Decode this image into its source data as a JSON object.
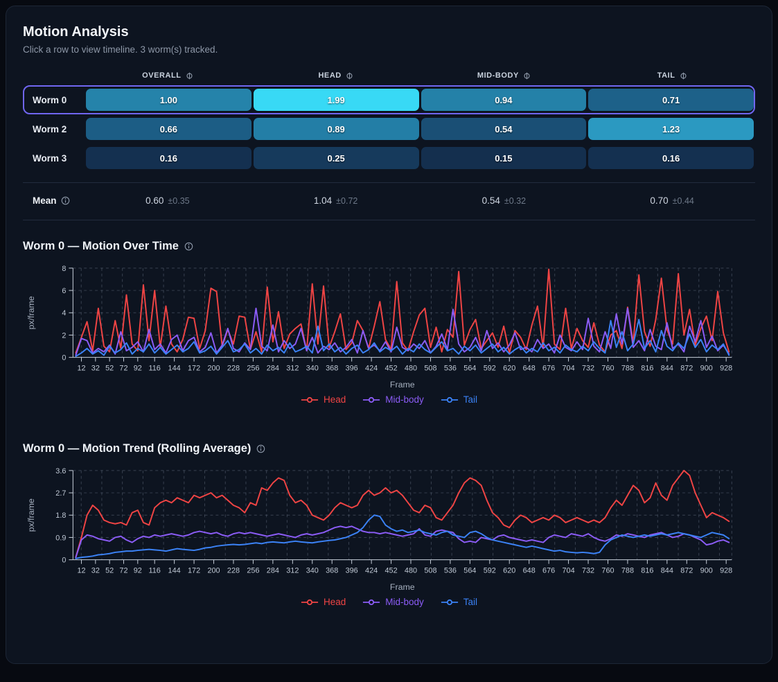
{
  "colors": {
    "page_bg": "#070a11",
    "card_bg": "#0d1420",
    "selected_row_border": "#7066f0",
    "head_series": "#ef4444",
    "midbody_series": "#8b5cf6",
    "tail_series": "#3b82f6"
  },
  "icons": {
    "column_info": "info-icon",
    "mean_info": "info-icon",
    "title_info": "info-icon"
  },
  "header": {
    "title": "Motion Analysis",
    "subtitle": "Click a row to view timeline. 3 worm(s) tracked."
  },
  "table": {
    "columns": [
      "OVERALL",
      "HEAD",
      "MID-BODY",
      "TAIL"
    ],
    "rows": [
      {
        "label": "Worm 0",
        "selected": true,
        "cells": [
          {
            "value": "1.00",
            "color": "#2583aa"
          },
          {
            "value": "1.99",
            "color": "#38d9f5"
          },
          {
            "value": "0.94",
            "color": "#2481a8"
          },
          {
            "value": "0.71",
            "color": "#1d6189"
          }
        ]
      },
      {
        "label": "Worm 2",
        "selected": false,
        "cells": [
          {
            "value": "0.66",
            "color": "#1c5d85"
          },
          {
            "value": "0.89",
            "color": "#237ea6"
          },
          {
            "value": "0.54",
            "color": "#1a4f75"
          },
          {
            "value": "1.23",
            "color": "#2b99c1"
          }
        ]
      },
      {
        "label": "Worm 3",
        "selected": false,
        "cells": [
          {
            "value": "0.16",
            "color": "#143050"
          },
          {
            "value": "0.25",
            "color": "#163a5c"
          },
          {
            "value": "0.15",
            "color": "#142f4e"
          },
          {
            "value": "0.16",
            "color": "#143050"
          }
        ]
      }
    ],
    "mean_row": {
      "label": "Mean",
      "stats": [
        {
          "mean": "0.60",
          "std": "±0.35"
        },
        {
          "mean": "1.04",
          "std": "±0.72"
        },
        {
          "mean": "0.54",
          "std": "±0.32"
        },
        {
          "mean": "0.70",
          "std": "±0.44"
        }
      ]
    }
  },
  "chart_data": [
    {
      "type": "line",
      "title": "Worm 0 — Motion Over Time",
      "xlabel": "Frame",
      "ylabel": "px/frame",
      "grid": "dashed",
      "legend_position": "bottom",
      "ylim": [
        0,
        8
      ],
      "y_ticks": [
        0,
        2,
        4,
        6,
        8
      ],
      "x_ticks": [
        12,
        32,
        52,
        72,
        92,
        116,
        144,
        172,
        200,
        228,
        256,
        284,
        312,
        340,
        368,
        396,
        424,
        452,
        480,
        508,
        536,
        564,
        592,
        620,
        648,
        676,
        704,
        732,
        760,
        788,
        816,
        844,
        872,
        900,
        928
      ],
      "x": [
        4,
        12,
        20,
        28,
        36,
        44,
        52,
        60,
        68,
        76,
        84,
        92,
        100,
        108,
        116,
        124,
        132,
        140,
        148,
        156,
        164,
        172,
        180,
        188,
        196,
        204,
        212,
        220,
        228,
        236,
        244,
        252,
        260,
        268,
        276,
        284,
        292,
        300,
        308,
        316,
        324,
        332,
        340,
        348,
        356,
        364,
        372,
        380,
        388,
        396,
        404,
        412,
        420,
        428,
        436,
        444,
        452,
        460,
        468,
        476,
        484,
        492,
        500,
        508,
        516,
        524,
        532,
        540,
        548,
        556,
        564,
        572,
        580,
        588,
        596,
        604,
        612,
        620,
        628,
        636,
        644,
        652,
        660,
        668,
        676,
        684,
        692,
        700,
        708,
        716,
        724,
        732,
        740,
        748,
        756,
        764,
        772,
        780,
        788,
        796,
        804,
        812,
        820,
        828,
        836,
        844,
        852,
        860,
        868,
        876,
        884,
        892,
        900,
        908,
        916,
        924,
        932
      ],
      "series": [
        {
          "name": "Head",
          "color": "#ef4444",
          "values": [
            0.4,
            1.8,
            3.2,
            0.6,
            4.4,
            1.0,
            0.5,
            3.3,
            0.8,
            5.6,
            1.2,
            0.6,
            6.5,
            1.5,
            6.0,
            0.9,
            4.6,
            1.2,
            0.5,
            1.6,
            3.6,
            3.5,
            0.8,
            2.4,
            6.2,
            5.9,
            1.0,
            2.5,
            1.2,
            3.7,
            3.6,
            0.7,
            2.3,
            0.5,
            6.3,
            1.4,
            4.1,
            0.8,
            2.1,
            2.6,
            3.0,
            0.6,
            6.6,
            1.2,
            6.4,
            0.9,
            2.3,
            3.9,
            0.7,
            1.3,
            3.3,
            2.4,
            0.8,
            2.8,
            5.0,
            1.6,
            0.7,
            6.8,
            1.3,
            0.6,
            2.3,
            3.8,
            4.4,
            0.9,
            2.7,
            0.5,
            2.5,
            1.8,
            7.7,
            1.1,
            2.5,
            3.4,
            0.8,
            1.5,
            2.2,
            0.9,
            2.8,
            0.4,
            2.4,
            1.8,
            0.7,
            2.9,
            4.6,
            0.9,
            7.9,
            1.2,
            0.7,
            4.4,
            0.8,
            2.6,
            1.5,
            0.9,
            3.1,
            1.1,
            0.5,
            2.0,
            2.4,
            0.8,
            4.5,
            1.3,
            7.4,
            2.3,
            1.0,
            3.4,
            7.1,
            2.5,
            1.2,
            7.5,
            2.0,
            4.3,
            1.1,
            2.6,
            3.7,
            1.5,
            5.9,
            2.2,
            0.5
          ]
        },
        {
          "name": "Mid-body",
          "color": "#8b5cf6",
          "values": [
            0.2,
            1.7,
            1.5,
            0.4,
            0.8,
            0.5,
            1.1,
            0.3,
            2.3,
            0.6,
            0.9,
            1.4,
            0.5,
            2.5,
            0.7,
            1.2,
            0.4,
            1.6,
            2.0,
            0.6,
            1.5,
            1.8,
            0.5,
            0.9,
            2.2,
            0.4,
            1.1,
            2.6,
            0.8,
            0.5,
            1.3,
            0.7,
            4.4,
            1.0,
            0.6,
            2.9,
            0.5,
            1.5,
            0.8,
            1.2,
            2.6,
            0.6,
            1.8,
            0.4,
            1.0,
            0.7,
            1.3,
            0.5,
            0.9,
            1.6,
            0.4,
            2.4,
            0.8,
            1.1,
            0.6,
            1.4,
            0.5,
            2.7,
            0.9,
            0.6,
            1.2,
            0.8,
            1.5,
            0.4,
            1.0,
            2.1,
            0.7,
            4.3,
            1.2,
            0.5,
            0.9,
            1.8,
            0.6,
            2.4,
            0.8,
            1.3,
            0.5,
            1.1,
            2.2,
            0.7,
            0.9,
            0.5,
            1.6,
            0.8,
            1.2,
            0.4,
            2.0,
            0.9,
            0.6,
            1.4,
            0.7,
            3.5,
            1.0,
            0.5,
            2.3,
            0.8,
            3.9,
            1.2,
            4.4,
            0.9,
            1.5,
            0.6,
            2.5,
            1.0,
            0.7,
            3.1,
            0.8,
            1.2,
            0.5,
            2.8,
            1.4,
            3.3,
            0.9,
            1.9,
            0.6,
            1.1,
            0.3
          ]
        },
        {
          "name": "Tail",
          "color": "#3b82f6",
          "values": [
            0.1,
            0.4,
            0.8,
            0.3,
            0.6,
            0.2,
            1.0,
            0.4,
            0.7,
            1.3,
            0.3,
            0.8,
            0.5,
            1.2,
            0.4,
            0.9,
            0.3,
            0.7,
            1.1,
            0.5,
            0.8,
            1.4,
            0.4,
            0.6,
            1.0,
            0.3,
            0.9,
            1.5,
            0.5,
            0.7,
            1.2,
            0.4,
            0.8,
            0.3,
            1.1,
            0.6,
            0.9,
            0.4,
            1.3,
            0.5,
            0.7,
            1.0,
            0.4,
            2.8,
            0.6,
            1.2,
            0.5,
            0.9,
            0.3,
            0.8,
            1.1,
            0.4,
            0.7,
            1.3,
            0.5,
            0.9,
            0.6,
            1.0,
            0.3,
            0.8,
            0.5,
            1.2,
            0.7,
            0.4,
            0.9,
            1.4,
            0.6,
            0.8,
            0.3,
            1.0,
            0.6,
            1.1,
            0.4,
            0.8,
            1.2,
            0.5,
            0.9,
            0.3,
            0.7,
            1.0,
            0.4,
            0.8,
            0.5,
            1.3,
            0.6,
            0.9,
            0.4,
            1.1,
            0.7,
            0.5,
            1.0,
            0.6,
            1.4,
            0.8,
            0.4,
            3.3,
            0.9,
            2.3,
            0.6,
            1.2,
            3.4,
            0.8,
            1.5,
            0.5,
            2.4,
            1.0,
            0.6,
            1.3,
            0.8,
            2.1,
            0.9,
            1.6,
            0.5,
            1.1,
            0.7,
            1.2,
            0.2
          ]
        }
      ]
    },
    {
      "type": "line",
      "title": "Worm 0 — Motion Trend (Rolling Average)",
      "xlabel": "Frame",
      "ylabel": "px/frame",
      "grid": "dashed",
      "legend_position": "bottom",
      "ylim": [
        0,
        3.6
      ],
      "y_ticks": [
        0,
        0.9,
        1.8,
        2.7,
        3.6
      ],
      "x_ticks": [
        12,
        32,
        52,
        72,
        92,
        116,
        144,
        172,
        200,
        228,
        256,
        284,
        312,
        340,
        368,
        396,
        424,
        452,
        480,
        508,
        536,
        564,
        592,
        620,
        648,
        676,
        704,
        732,
        760,
        788,
        816,
        844,
        872,
        900,
        928
      ],
      "x": [
        4,
        12,
        20,
        28,
        36,
        44,
        52,
        60,
        68,
        76,
        84,
        92,
        100,
        108,
        116,
        124,
        132,
        140,
        148,
        156,
        164,
        172,
        180,
        188,
        196,
        204,
        212,
        220,
        228,
        236,
        244,
        252,
        260,
        268,
        276,
        284,
        292,
        300,
        308,
        316,
        324,
        332,
        340,
        348,
        356,
        364,
        372,
        380,
        388,
        396,
        404,
        412,
        420,
        428,
        436,
        444,
        452,
        460,
        468,
        476,
        484,
        492,
        500,
        508,
        516,
        524,
        532,
        540,
        548,
        556,
        564,
        572,
        580,
        588,
        596,
        604,
        612,
        620,
        628,
        636,
        644,
        652,
        660,
        668,
        676,
        684,
        692,
        700,
        708,
        716,
        724,
        732,
        740,
        748,
        756,
        764,
        772,
        780,
        788,
        796,
        804,
        812,
        820,
        828,
        836,
        844,
        852,
        860,
        868,
        876,
        884,
        892,
        900,
        908,
        916,
        924,
        932
      ],
      "series": [
        {
          "name": "Head",
          "color": "#ef4444",
          "values": [
            0.1,
            0.9,
            1.8,
            2.2,
            2.0,
            1.6,
            1.5,
            1.45,
            1.5,
            1.4,
            1.9,
            2.0,
            1.5,
            1.4,
            2.1,
            2.3,
            2.4,
            2.3,
            2.5,
            2.4,
            2.3,
            2.6,
            2.5,
            2.6,
            2.7,
            2.5,
            2.6,
            2.4,
            2.2,
            2.1,
            1.9,
            2.3,
            2.2,
            2.9,
            2.8,
            3.1,
            3.3,
            3.2,
            2.6,
            2.3,
            2.4,
            2.2,
            1.8,
            1.7,
            1.6,
            1.8,
            2.1,
            2.3,
            2.2,
            2.1,
            2.2,
            2.6,
            2.8,
            2.6,
            2.7,
            2.9,
            2.7,
            2.8,
            2.6,
            2.3,
            2.0,
            1.9,
            2.2,
            2.1,
            1.7,
            1.6,
            1.9,
            2.2,
            2.7,
            3.1,
            3.3,
            3.2,
            3.0,
            2.4,
            1.9,
            1.7,
            1.4,
            1.3,
            1.6,
            1.8,
            1.7,
            1.5,
            1.6,
            1.7,
            1.6,
            1.8,
            1.7,
            1.5,
            1.6,
            1.7,
            1.6,
            1.5,
            1.6,
            1.5,
            1.7,
            2.1,
            2.4,
            2.2,
            2.6,
            3.0,
            2.8,
            2.3,
            2.5,
            3.1,
            2.6,
            2.4,
            3.0,
            3.3,
            3.6,
            3.4,
            2.7,
            2.2,
            1.7,
            1.9,
            1.8,
            1.7,
            1.55
          ]
        },
        {
          "name": "Mid-body",
          "color": "#8b5cf6",
          "values": [
            0.1,
            0.8,
            1.0,
            0.95,
            0.85,
            0.8,
            0.75,
            0.9,
            0.95,
            0.8,
            0.7,
            0.85,
            0.95,
            0.9,
            1.0,
            0.95,
            1.0,
            1.05,
            1.0,
            0.95,
            1.0,
            1.1,
            1.15,
            1.1,
            1.05,
            1.1,
            1.0,
            0.95,
            1.05,
            1.1,
            1.05,
            1.1,
            1.05,
            1.0,
            0.95,
            1.0,
            1.05,
            1.0,
            0.95,
            0.9,
            1.0,
            1.05,
            1.0,
            1.05,
            1.1,
            1.2,
            1.3,
            1.35,
            1.3,
            1.35,
            1.25,
            1.15,
            1.1,
            1.1,
            1.05,
            1.1,
            1.05,
            1.0,
            0.95,
            1.0,
            1.05,
            1.25,
            1.0,
            0.95,
            1.15,
            1.2,
            1.15,
            1.1,
            0.85,
            0.7,
            0.75,
            0.7,
            0.9,
            0.85,
            0.8,
            0.95,
            1.0,
            0.9,
            0.85,
            0.8,
            0.75,
            0.8,
            0.75,
            0.7,
            0.9,
            1.0,
            0.95,
            0.9,
            1.05,
            1.0,
            0.95,
            1.05,
            0.9,
            0.8,
            0.75,
            0.85,
            1.0,
            0.95,
            1.05,
            1.0,
            0.95,
            0.9,
            1.0,
            1.05,
            1.1,
            1.0,
            0.9,
            0.95,
            1.05,
            1.0,
            0.9,
            0.8,
            0.6,
            0.65,
            0.75,
            0.8,
            0.7
          ]
        },
        {
          "name": "Tail",
          "color": "#3b82f6",
          "values": [
            0.05,
            0.1,
            0.12,
            0.15,
            0.2,
            0.22,
            0.25,
            0.3,
            0.32,
            0.35,
            0.35,
            0.38,
            0.4,
            0.42,
            0.4,
            0.38,
            0.35,
            0.4,
            0.45,
            0.42,
            0.4,
            0.38,
            0.42,
            0.48,
            0.5,
            0.55,
            0.58,
            0.6,
            0.62,
            0.6,
            0.62,
            0.65,
            0.68,
            0.65,
            0.7,
            0.72,
            0.7,
            0.68,
            0.72,
            0.75,
            0.72,
            0.7,
            0.68,
            0.72,
            0.75,
            0.78,
            0.8,
            0.85,
            0.9,
            1.0,
            1.1,
            1.3,
            1.6,
            1.8,
            1.75,
            1.4,
            1.25,
            1.15,
            1.2,
            1.1,
            1.15,
            1.2,
            1.1,
            1.05,
            1.0,
            1.1,
            1.15,
            1.0,
            0.95,
            0.9,
            1.1,
            1.15,
            1.05,
            0.9,
            0.8,
            0.75,
            0.7,
            0.65,
            0.6,
            0.55,
            0.5,
            0.55,
            0.5,
            0.45,
            0.4,
            0.35,
            0.38,
            0.32,
            0.3,
            0.28,
            0.3,
            0.28,
            0.25,
            0.3,
            0.6,
            0.8,
            0.9,
            1.0,
            0.95,
            0.9,
            0.95,
            1.0,
            0.95,
            1.0,
            1.05,
            1.0,
            1.05,
            1.1,
            1.05,
            1.0,
            0.95,
            0.9,
            1.0,
            1.1,
            1.05,
            1.0,
            0.85
          ]
        }
      ]
    }
  ]
}
